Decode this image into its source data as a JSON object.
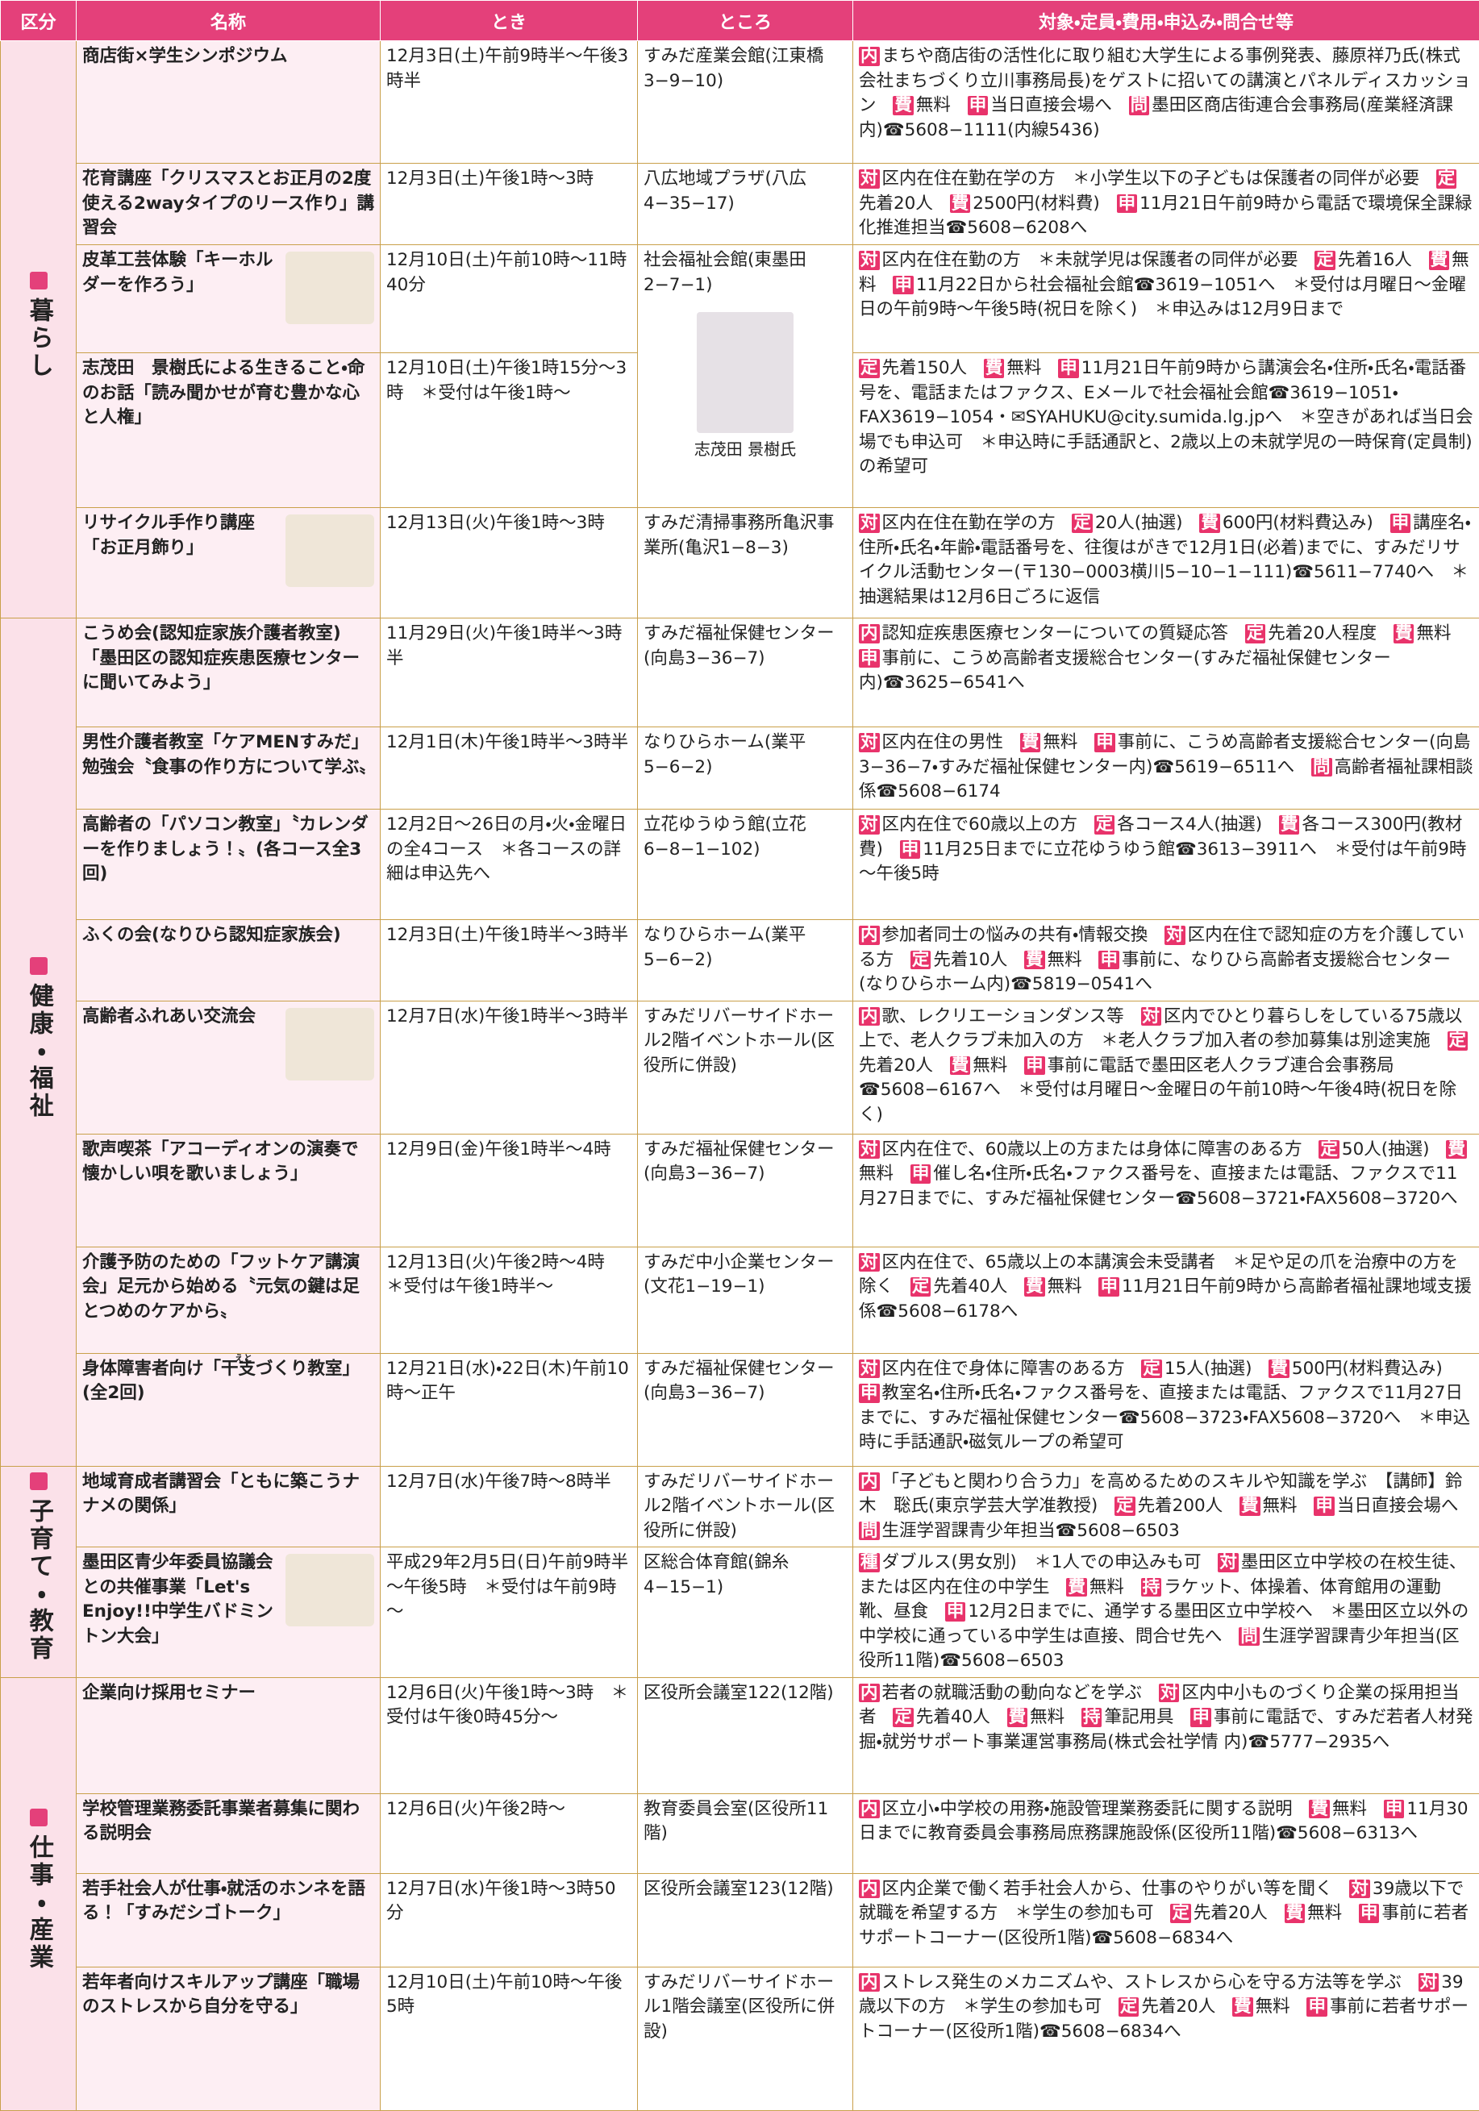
{
  "header": [
    "区分",
    "名称",
    "とき",
    "ところ",
    "対象・定員・費用・申込み・問合せ等"
  ],
  "sections": [
    {
      "name": "暮らし",
      "rows": [
        {
          "name": "商店街×学生シンポジウム",
          "when": "12月3日(土)午前9時半～午後3時半",
          "where": "すみだ産業会館(江東橋3−9−10)",
          "details": [
            {
              "tag": "内",
              "text": "まちや商店街の活性化に取り組む大学生による事例発表、藤原祥乃氏(株式会社まちづくり立川事務局長)をゲストに招いての講演とパネルディスカッション"
            },
            {
              "tag": "費",
              "text": "無料"
            },
            {
              "tag": "申",
              "text": "当日直接会場へ"
            },
            {
              "tag": "問",
              "text": "墨田区商店街連合会事務局(産業経済課内)☎5608−1111(内線5436)"
            }
          ]
        },
        {
          "name": "花育講座「クリスマスとお正月の2度使える2wayタイプのリース作り」講習会",
          "when": "12月3日(土)午後1時～3時",
          "where": "八広地域プラザ(八広4−35−17)",
          "details": [
            {
              "tag": "対",
              "text": "区内在住在勤在学の方　＊小学生以下の子どもは保護者の同伴が必要"
            },
            {
              "tag": "定",
              "text": "先着20人"
            },
            {
              "tag": "費",
              "text": "2500円(材料費)"
            },
            {
              "tag": "申",
              "text": "11月21日午前9時から電話で環境保全課緑化推進担当☎5608−6208へ"
            }
          ]
        },
        {
          "name": "皮革工芸体験「キーホルダーを作ろう」",
          "when": "12月10日(土)午前10時～11時40分",
          "where": {
            "text": "社会福祉会館(東墨田2−7−1)",
            "caption": "志茂田 景樹氏"
          },
          "details": [
            {
              "tag": "対",
              "text": "区内在住在勤の方　＊未就学児は保護者の同伴が必要"
            },
            {
              "tag": "定",
              "text": "先着16人"
            },
            {
              "tag": "費",
              "text": "無料"
            },
            {
              "tag": "申",
              "text": "11月22日から社会福祉会館☎3619−1051へ　＊受付は月曜日～金曜日の午前9時～午後5時(祝日を除く)　＊申込みは12月9日まで"
            }
          ]
        },
        {
          "name": "志茂田　景樹氏による生きること・命のお話「読み聞かせが育む豊かな心と人権」",
          "when": "12月10日(土)午後1時15分～3時　＊受付は午後1時～",
          "details": [
            {
              "tag": "定",
              "text": "先着150人"
            },
            {
              "tag": "費",
              "text": "無料"
            },
            {
              "tag": "申",
              "text": "11月21日午前9時から講演会名・住所・氏名・電話番号を、電話またはファクス、Eメールで社会福祉会館☎3619−1051・FAX3619−1054・✉SYAHUKU@city.sumida.lg.jpへ　＊空きがあれば当日会場でも申込可　＊申込時に手話通訳と、2歳以上の未就学児の一時保育(定員制)の希望可"
            }
          ]
        },
        {
          "name": "リサイクル手作り講座「お正月飾り」",
          "when": "12月13日(火)午後1時～3時",
          "where": "すみだ清掃事務所亀沢事業所(亀沢1−8−3)",
          "details": [
            {
              "tag": "対",
              "text": "区内在住在勤在学の方"
            },
            {
              "tag": "定",
              "text": "20人(抽選)"
            },
            {
              "tag": "費",
              "text": "600円(材料費込み)"
            },
            {
              "tag": "申",
              "text": "講座名・住所・氏名・年齢・電話番号を、往復はがきで12月1日(必着)までに、すみだリサイクル活動センター(〒130−0003横川5−10−1−111)☎5611−7740へ　＊抽選結果は12月6日ごろに返信"
            }
          ]
        }
      ]
    },
    {
      "name": "健康・福祉",
      "rows": [
        {
          "name": "こうめ会(認知症家族介護者教室)「墨田区の認知症疾患医療センターに聞いてみよう」",
          "when": "11月29日(火)午後1時半～3時半",
          "where": "すみだ福祉保健センター(向島3−36−7)",
          "details": [
            {
              "tag": "内",
              "text": "認知症疾患医療センターについての質疑応答"
            },
            {
              "tag": "定",
              "text": "先着20人程度"
            },
            {
              "tag": "費",
              "text": "無料"
            },
            {
              "tag": "申",
              "text": "事前に、こうめ高齢者支援総合センター(すみだ福祉保健センター内)☎3625−6541へ"
            }
          ]
        },
        {
          "name": "男性介護者教室「ケアMENすみだ」勉強会〝食事の作り方について学ぶ〟",
          "when": "12月1日(木)午後1時半～3時半",
          "where": "なりひらホーム(業平5−6−2)",
          "details": [
            {
              "tag": "対",
              "text": "区内在住の男性"
            },
            {
              "tag": "費",
              "text": "無料"
            },
            {
              "tag": "申",
              "text": "事前に、こうめ高齢者支援総合センター(向島3−36−7・すみだ福祉保健センター内)☎5619−6511へ"
            },
            {
              "tag": "問",
              "text": "高齢者福祉課相談係☎5608−6174"
            }
          ]
        },
        {
          "name": "高齢者の「パソコン教室」〝カレンダーを作りましょう！〟(各コース全3回)",
          "when": "12月2日～26日の月・火・金曜日の全4コース　＊各コースの詳細は申込先へ",
          "where": "立花ゆうゆう館(立花6−8−1−102)",
          "details": [
            {
              "tag": "対",
              "text": "区内在住で60歳以上の方"
            },
            {
              "tag": "定",
              "text": "各コース4人(抽選)"
            },
            {
              "tag": "費",
              "text": "各コース300円(教材費)"
            },
            {
              "tag": "申",
              "text": "11月25日までに立花ゆうゆう館☎3613−3911へ　＊受付は午前9時～午後5時"
            }
          ]
        },
        {
          "name": "ふくの会(なりひら認知症家族会)",
          "when": "12月3日(土)午後1時半～3時半",
          "where": "なりひらホーム(業平5−6−2)",
          "details": [
            {
              "tag": "内",
              "text": "参加者同士の悩みの共有・情報交換"
            },
            {
              "tag": "対",
              "text": "区内在住で認知症の方を介護している方"
            },
            {
              "tag": "定",
              "text": "先着10人"
            },
            {
              "tag": "費",
              "text": "無料"
            },
            {
              "tag": "申",
              "text": "事前に、なりひら高齢者支援総合センター(なりひらホーム内)☎5819−0541へ"
            }
          ]
        },
        {
          "name": "高齢者ふれあい交流会",
          "when": "12月7日(水)午後1時半～3時半",
          "where": "すみだリバーサイドホール2階イベントホール(区役所に併設)",
          "details": [
            {
              "tag": "内",
              "text": "歌、レクリエーションダンス等"
            },
            {
              "tag": "対",
              "text": "区内でひとり暮らしをしている75歳以上で、老人クラブ未加入の方　＊老人クラブ加入者の参加募集は別途実施"
            },
            {
              "tag": "定",
              "text": "先着20人"
            },
            {
              "tag": "費",
              "text": "無料"
            },
            {
              "tag": "申",
              "text": "事前に電話で墨田区老人クラブ連合会事務局☎5608−6167へ　＊受付は月曜日～金曜日の午前10時～午後4時(祝日を除く)"
            }
          ]
        },
        {
          "name": "歌声喫茶「アコーディオンの演奏で懐かしい唄を歌いましょう」",
          "when": "12月9日(金)午後1時半～4時",
          "where": "すみだ福祉保健センター(向島3−36−7)",
          "details": [
            {
              "tag": "対",
              "text": "区内在住で、60歳以上の方または身体に障害のある方"
            },
            {
              "tag": "定",
              "text": "50人(抽選)"
            },
            {
              "tag": "費",
              "text": "無料"
            },
            {
              "tag": "申",
              "text": "催し名・住所・氏名・ファクス番号を、直接または電話、ファクスで11月27日までに、すみだ福祉保健センター☎5608−3721・FAX5608−3720へ"
            }
          ]
        },
        {
          "name": "介護予防のための「フットケア講演会」足元から始める〝元気の鍵は足とつめのケアから〟",
          "when": "12月13日(火)午後2時～4時　＊受付は午後1時半～",
          "where": "すみだ中小企業センター(文花1−19−1)",
          "details": [
            {
              "tag": "対",
              "text": "区内在住で、65歳以上の本講演会未受講者　＊足や足の爪を治療中の方を除く"
            },
            {
              "tag": "定",
              "text": "先着40人"
            },
            {
              "tag": "費",
              "text": "無料"
            },
            {
              "tag": "申",
              "text": "11月21日午前9時から高齢者福祉課地域支援係☎5608−6178へ"
            }
          ]
        },
        {
          "name": "身体障害者向け「干支づくり教室」(全2回)",
          "furigana": "えと",
          "when": "12月21日(水)・22日(木)午前10時～正午",
          "where": "すみだ福祉保健センター(向島3−36−7)",
          "details": [
            {
              "tag": "対",
              "text": "区内在住で身体に障害のある方"
            },
            {
              "tag": "定",
              "text": "15人(抽選)"
            },
            {
              "tag": "費",
              "text": "500円(材料費込み)"
            },
            {
              "tag": "申",
              "text": "教室名・住所・氏名・ファクス番号を、直接または電話、ファクスで11月27日までに、すみだ福祉保健センター☎5608−3723・FAX5608−3720へ　＊申込時に手話通訳・磁気ループの希望可"
            }
          ]
        }
      ]
    },
    {
      "name": "子育て・教育",
      "rows": [
        {
          "name": "地域育成者講習会「ともに築こうナナメの関係」",
          "when": "12月7日(水)午後7時～8時半",
          "where": "すみだリバーサイドホール2階イベントホール(区役所に併設)",
          "details": [
            {
              "tag": "内",
              "text": "「子どもと関わり合う力」を高めるためのスキルや知識を学ぶ　【講師】鈴木　聡氏(東京学芸大学准教授)"
            },
            {
              "tag": "定",
              "text": "先着200人"
            },
            {
              "tag": "費",
              "text": "無料"
            },
            {
              "tag": "申",
              "text": "当日直接会場へ"
            },
            {
              "tag": "問",
              "text": "生涯学習課青少年担当☎5608−6503"
            }
          ]
        },
        {
          "name": "墨田区青少年委員協議会との共催事業「Let's Enjoy!!中学生バドミントン大会」",
          "when": "平成29年2月5日(日)午前9時半～午後5時　＊受付は午前9時～",
          "where": "区総合体育館(錦糸4−15−1)",
          "details": [
            {
              "tag": "種",
              "text": "ダブルス(男女別)　＊1人での申込みも可"
            },
            {
              "tag": "対",
              "text": "墨田区立中学校の在校生徒、または区内在住の中学生"
            },
            {
              "tag": "費",
              "text": "無料"
            },
            {
              "tag": "持",
              "text": "ラケット、体操着、体育館用の運動靴、昼食"
            },
            {
              "tag": "申",
              "text": "12月2日までに、通学する墨田区立中学校へ　＊墨田区立以外の中学校に通っている中学生は直接、問合せ先へ"
            },
            {
              "tag": "問",
              "text": "生涯学習課青少年担当(区役所11階)☎5608−6503"
            }
          ]
        }
      ]
    },
    {
      "name": "仕事・産業",
      "rows": [
        {
          "name": "企業向け採用セミナー",
          "when": "12月6日(火)午後1時～3時　＊受付は午後0時45分～",
          "where": "区役所会議室122(12階)",
          "details": [
            {
              "tag": "内",
              "text": "若者の就職活動の動向などを学ぶ"
            },
            {
              "tag": "対",
              "text": "区内中小ものづくり企業の採用担当者"
            },
            {
              "tag": "定",
              "text": "先着40人"
            },
            {
              "tag": "費",
              "text": "無料"
            },
            {
              "tag": "持",
              "text": "筆記用具"
            },
            {
              "tag": "申",
              "text": "事前に電話で、すみだ若者人材発掘・就労サポート事業運営事務局(株式会社学情 内)☎5777−2935へ"
            }
          ]
        },
        {
          "name": "学校管理業務委託事業者募集に関わる説明会",
          "when": "12月6日(火)午後2時～",
          "where": "教育委員会室(区役所11階)",
          "details": [
            {
              "tag": "内",
              "text": "区立小・中学校の用務・施設管理業務委託に関する説明"
            },
            {
              "tag": "費",
              "text": "無料"
            },
            {
              "tag": "申",
              "text": "11月30日までに教育委員会事務局庶務課施設係(区役所11階)☎5608−6313へ"
            }
          ]
        },
        {
          "name": "若手社会人が仕事・就活のホンネを語る！「すみだシゴトーク」",
          "when": "12月7日(水)午後1時～3時50分",
          "where": "区役所会議室123(12階)",
          "details": [
            {
              "tag": "内",
              "text": "区内企業で働く若手社会人から、仕事のやりがい等を聞く"
            },
            {
              "tag": "対",
              "text": "39歳以下で就職を希望する方　＊学生の参加も可"
            },
            {
              "tag": "定",
              "text": "先着20人"
            },
            {
              "tag": "費",
              "text": "無料"
            },
            {
              "tag": "申",
              "text": "事前に若者サポートコーナー(区役所1階)☎5608−6834へ"
            }
          ]
        },
        {
          "name": "若年者向けスキルアップ講座「職場のストレスから自分を守る」",
          "when": "12月10日(土)午前10時～午後5時",
          "where": "すみだリバーサイドホール1階会議室(区役所に併設)",
          "details": [
            {
              "tag": "内",
              "text": "ストレス発生のメカニズムや、ストレスから心を守る方法等を学ぶ"
            },
            {
              "tag": "対",
              "text": "39歳以下の方　＊学生の参加も可"
            },
            {
              "tag": "定",
              "text": "先着20人"
            },
            {
              "tag": "費",
              "text": "無料"
            },
            {
              "tag": "申",
              "text": "事前に若者サポートコーナー(区役所1階)☎5608−6834へ"
            }
          ]
        }
      ]
    }
  ]
}
